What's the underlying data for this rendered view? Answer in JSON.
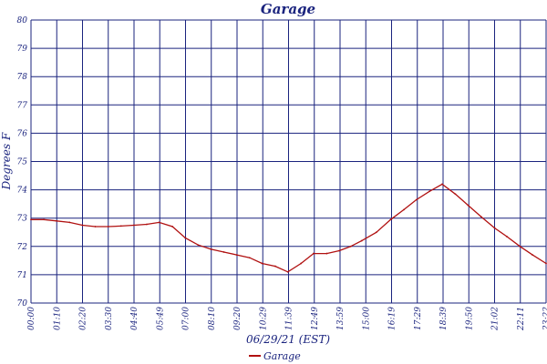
{
  "chart_data": {
    "type": "line",
    "title": "Garage",
    "xlabel": "06/29/21 (EST)",
    "ylabel": "Degrees F",
    "ylim": [
      70,
      80
    ],
    "y_ticks": [
      "70",
      "71",
      "72",
      "73",
      "74",
      "75",
      "76",
      "77",
      "78",
      "79",
      "80"
    ],
    "x_ticks": [
      "00:00",
      "01:10",
      "02:20",
      "03:30",
      "04:40",
      "05:49",
      "07:00",
      "08:10",
      "09:20",
      "10:29",
      "11:39",
      "12:49",
      "13:59",
      "15:00",
      "16:19",
      "17:29",
      "18:39",
      "19:50",
      "21:02",
      "22:11",
      "23:22"
    ],
    "grid": true,
    "legend_position": "bottom-center",
    "colors": {
      "grid": "#1a237e",
      "series": "#b01010",
      "text": "#1a237e"
    },
    "series": [
      {
        "name": "Garage",
        "x": [
          "00:00",
          "00:35",
          "01:10",
          "01:45",
          "02:20",
          "02:55",
          "03:30",
          "04:05",
          "04:40",
          "05:15",
          "05:49",
          "06:25",
          "07:00",
          "07:35",
          "08:10",
          "08:45",
          "09:20",
          "09:55",
          "10:29",
          "11:05",
          "11:39",
          "12:15",
          "12:49",
          "13:25",
          "13:59",
          "14:30",
          "15:00",
          "15:40",
          "16:19",
          "16:55",
          "17:29",
          "18:05",
          "18:39",
          "19:15",
          "19:50",
          "20:25",
          "21:02",
          "21:35",
          "22:11",
          "22:45",
          "23:22"
        ],
        "values": [
          72.95,
          72.95,
          72.9,
          72.85,
          72.75,
          72.7,
          72.7,
          72.72,
          72.75,
          72.78,
          72.85,
          72.7,
          72.3,
          72.05,
          71.9,
          71.8,
          71.7,
          71.6,
          71.4,
          71.3,
          71.1,
          71.4,
          71.75,
          71.75,
          71.85,
          72.0,
          72.2,
          72.5,
          72.95,
          73.3,
          73.65,
          73.95,
          74.2,
          73.85,
          73.45,
          73.05,
          72.65,
          72.35,
          72.0,
          71.7,
          71.4
        ]
      }
    ]
  }
}
